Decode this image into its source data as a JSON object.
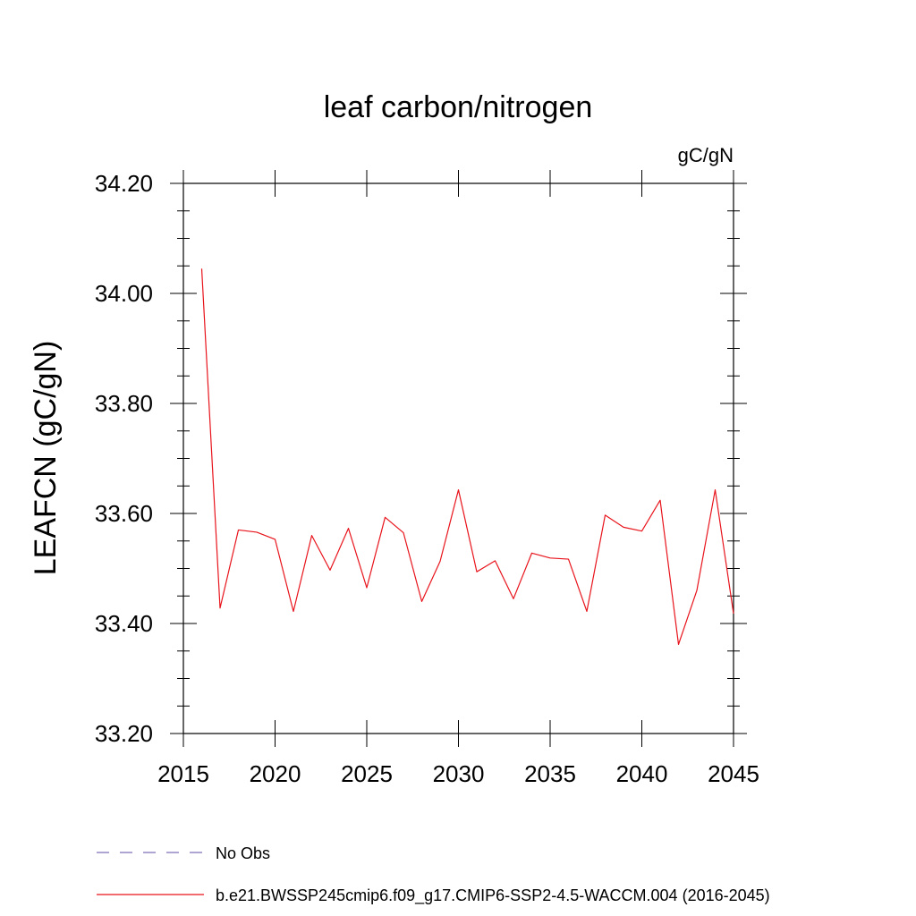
{
  "chart_data": {
    "type": "line",
    "title": "leaf carbon/nitrogen",
    "units_label": "gC/gN",
    "xlabel": "",
    "ylabel": "LEAFCN  (gC/gN)",
    "xlim": [
      2015,
      2045
    ],
    "ylim": [
      33.2,
      34.2
    ],
    "x_ticks": [
      2015,
      2020,
      2025,
      2030,
      2035,
      2040,
      2045
    ],
    "x_tick_labels": [
      "2015",
      "2020",
      "2025",
      "2030",
      "2035",
      "2040",
      "2045"
    ],
    "y_ticks": [
      33.2,
      33.4,
      33.6,
      33.8,
      34.0,
      34.2
    ],
    "y_tick_labels": [
      "33.20",
      "33.40",
      "33.60",
      "33.80",
      "34.00",
      "34.20"
    ],
    "grid": false,
    "legend_position": "bottom",
    "series": [
      {
        "name": "b.e21.BWSSP245cmip6.f09_g17.CMIP6-SSP2-4.5-WACCM.004 (2016-2045)",
        "color": "#e8141c",
        "style": "solid",
        "x": [
          2016,
          2017,
          2018,
          2019,
          2020,
          2021,
          2022,
          2023,
          2024,
          2025,
          2026,
          2027,
          2028,
          2029,
          2030,
          2031,
          2032,
          2033,
          2034,
          2035,
          2036,
          2037,
          2038,
          2039,
          2040,
          2041,
          2042,
          2043,
          2044,
          2045
        ],
        "values": [
          34.045,
          33.428,
          33.57,
          33.566,
          33.553,
          33.422,
          33.56,
          33.497,
          33.573,
          33.465,
          33.593,
          33.565,
          33.44,
          33.513,
          33.643,
          33.494,
          33.514,
          33.445,
          33.528,
          33.519,
          33.517,
          33.422,
          33.597,
          33.575,
          33.568,
          33.624,
          33.362,
          33.46,
          33.643,
          33.418
        ]
      },
      {
        "name": "No Obs",
        "color": "#7d6fb8",
        "style": "dashed",
        "x": [],
        "values": []
      }
    ]
  }
}
